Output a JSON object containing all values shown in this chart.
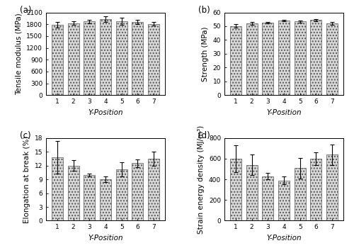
{
  "positions": [
    1,
    2,
    3,
    4,
    5,
    6,
    7
  ],
  "modulus_values": [
    1790,
    1830,
    1870,
    1930,
    1875,
    1855,
    1810
  ],
  "modulus_errors": [
    75,
    50,
    45,
    75,
    95,
    55,
    40
  ],
  "modulus_ylabel": "Tensile modulus (MPa)",
  "modulus_ylim": [
    0,
    2100
  ],
  "modulus_yticks": [
    0,
    300,
    600,
    900,
    1200,
    1500,
    1800,
    2100
  ],
  "strength_values": [
    50.2,
    52.2,
    52.5,
    54.0,
    53.5,
    54.5,
    52.2
  ],
  "strength_errors": [
    1.2,
    1.0,
    0.6,
    0.6,
    0.8,
    0.7,
    1.0
  ],
  "strength_ylabel": "Strength (MPa)",
  "strength_ylim": [
    0,
    60
  ],
  "strength_yticks": [
    0,
    10,
    20,
    30,
    40,
    50,
    60
  ],
  "elongation_values": [
    13.8,
    12.0,
    10.0,
    9.0,
    11.2,
    12.5,
    13.5
  ],
  "elongation_errors": [
    3.5,
    1.2,
    0.3,
    0.6,
    1.5,
    0.8,
    1.5
  ],
  "elongation_ylabel": "Elongation at break (%)",
  "elongation_ylim": [
    0,
    18
  ],
  "elongation_yticks": [
    0,
    3,
    6,
    9,
    12,
    15,
    18
  ],
  "sed_values": [
    600,
    540,
    430,
    390,
    510,
    600,
    640
  ],
  "sed_errors": [
    130,
    100,
    30,
    40,
    100,
    60,
    100
  ],
  "sed_ylabel": "Strain energy density (MJ/m³)",
  "sed_ylim": [
    0,
    800
  ],
  "sed_yticks": [
    0,
    200,
    400,
    600,
    800
  ],
  "xlabel": "Y-Position",
  "bar_facecolor": "#d8d8d8",
  "bar_edgecolor": "#555555",
  "hatch": "....",
  "error_color": "black",
  "label_fontsize": 7.5,
  "tick_fontsize": 6.5,
  "panel_labels": [
    "(a)",
    "(b)",
    "(c)",
    "(d)"
  ]
}
